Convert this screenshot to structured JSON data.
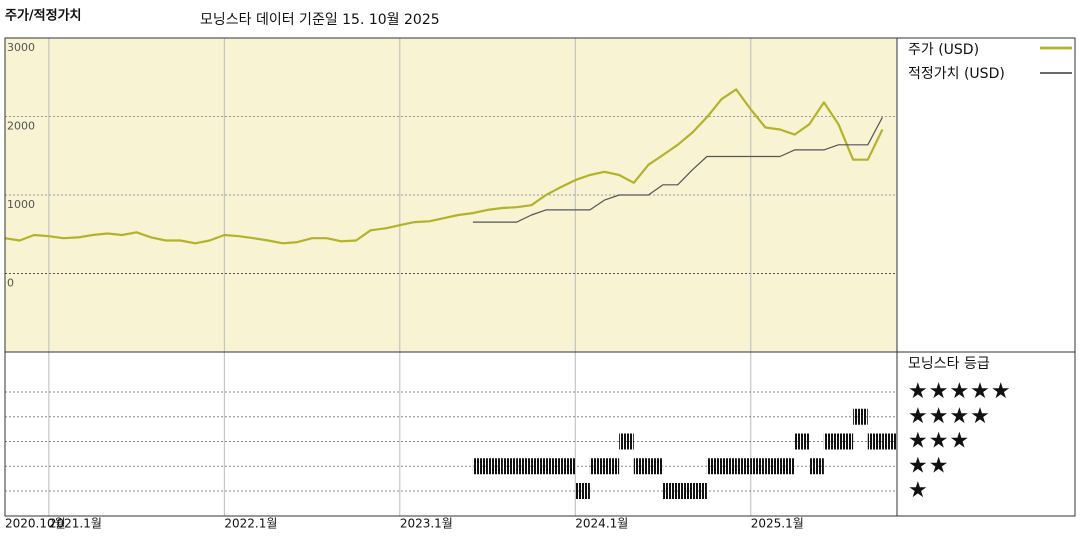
{
  "chart_data": {
    "type": "line",
    "title": "주가/적정가치",
    "subtitle": "모닝스타 데이터 기준일 15. 10월 2025",
    "x": [
      "2020-10",
      "2020-11",
      "2020-12",
      "2021-01",
      "2021-02",
      "2021-03",
      "2021-04",
      "2021-05",
      "2021-06",
      "2021-07",
      "2021-08",
      "2021-09",
      "2021-10",
      "2021-11",
      "2021-12",
      "2022-01",
      "2022-02",
      "2022-03",
      "2022-04",
      "2022-05",
      "2022-06",
      "2022-07",
      "2022-08",
      "2022-09",
      "2022-10",
      "2022-11",
      "2022-12",
      "2023-01",
      "2023-02",
      "2023-03",
      "2023-04",
      "2023-05",
      "2023-06",
      "2023-07",
      "2023-08",
      "2023-09",
      "2023-10",
      "2023-11",
      "2023-12",
      "2024-01",
      "2024-02",
      "2024-03",
      "2024-04",
      "2024-05",
      "2024-06",
      "2024-07",
      "2024-08",
      "2024-09",
      "2024-10",
      "2024-11",
      "2024-12",
      "2025-01",
      "2025-02",
      "2025-03",
      "2025-04",
      "2025-05",
      "2025-06",
      "2025-07",
      "2025-08",
      "2025-09",
      "2025-10"
    ],
    "series": [
      {
        "name": "주가 (USD)",
        "color": "#b3b32b",
        "width": 2.2,
        "values": [
          450,
          420,
          490,
          475,
          450,
          460,
          490,
          510,
          490,
          525,
          460,
          420,
          420,
          385,
          420,
          490,
          475,
          450,
          420,
          385,
          400,
          450,
          450,
          410,
          420,
          550,
          575,
          615,
          655,
          665,
          705,
          745,
          770,
          810,
          835,
          845,
          870,
          1000,
          1100,
          1190,
          1255,
          1295,
          1255,
          1155,
          1385,
          1510,
          1640,
          1795,
          1990,
          2220,
          2345,
          2090,
          1860,
          1835,
          1770,
          1900,
          2180,
          1900,
          1450,
          1450,
          1835
        ]
      },
      {
        "name": "적정가치 (USD)",
        "color": "#555555",
        "width": 1.2,
        "values": [
          null,
          null,
          null,
          null,
          null,
          null,
          null,
          null,
          null,
          null,
          null,
          null,
          null,
          null,
          null,
          null,
          null,
          null,
          null,
          null,
          null,
          null,
          null,
          null,
          null,
          null,
          null,
          null,
          null,
          null,
          null,
          null,
          655,
          655,
          655,
          655,
          745,
          810,
          810,
          810,
          810,
          935,
          1000,
          1000,
          1000,
          1130,
          1130,
          1320,
          1490,
          1490,
          1490,
          1490,
          1490,
          1490,
          1575,
          1575,
          1575,
          1640,
          1640,
          1640,
          1990
        ]
      }
    ],
    "xlim": [
      "2020-10",
      "2025-11"
    ],
    "xticks": [
      {
        "value": "2020-10",
        "label": "2020.10월"
      },
      {
        "value": "2021-01",
        "label": "2021.1월"
      },
      {
        "value": "2022-01",
        "label": "2022.1월"
      },
      {
        "value": "2023-01",
        "label": "2023.1월"
      },
      {
        "value": "2024-01",
        "label": "2024.1월"
      },
      {
        "value": "2025-01",
        "label": "2025.1월"
      }
    ],
    "ylim": [
      -1000,
      3000
    ],
    "yticks": [
      0,
      1000,
      2000,
      3000
    ],
    "grid": true,
    "rating": {
      "name": "모닝스타 등급",
      "ticks": [
        {
          "value": 5,
          "label": "★★★★★"
        },
        {
          "value": 4,
          "label": "★★★★"
        },
        {
          "value": 3,
          "label": "★★★"
        },
        {
          "value": 2,
          "label": "★★"
        },
        {
          "value": 1,
          "label": "★"
        }
      ],
      "values": [
        null,
        null,
        null,
        null,
        null,
        null,
        null,
        null,
        null,
        null,
        null,
        null,
        null,
        null,
        null,
        null,
        null,
        null,
        null,
        null,
        null,
        null,
        null,
        null,
        null,
        null,
        null,
        null,
        null,
        null,
        null,
        null,
        2,
        2,
        2,
        2,
        2,
        2,
        2,
        1,
        2,
        2,
        3,
        2,
        2,
        1,
        1,
        1,
        2,
        2,
        2,
        2,
        2,
        2,
        3,
        2,
        3,
        3,
        4,
        3,
        3
      ]
    }
  }
}
